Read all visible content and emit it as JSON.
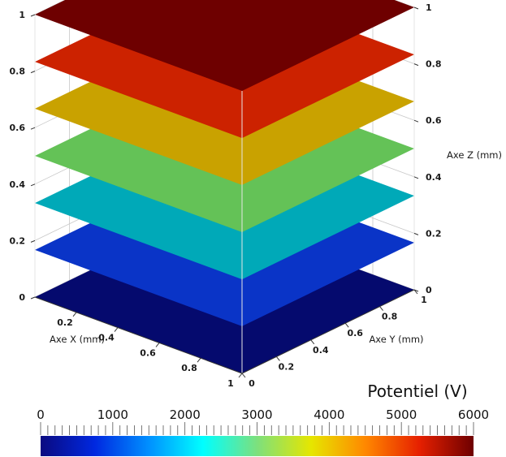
{
  "chart_data": {
    "type": "3d-isosurfaces",
    "axes": {
      "x": {
        "label": "Axe X (mm)",
        "range": [
          0,
          1
        ],
        "ticks": [
          "0",
          "0.2",
          "0.4",
          "0.6",
          "0.8",
          "1"
        ]
      },
      "y": {
        "label": "Axe Y (mm)",
        "range": [
          0,
          1
        ],
        "ticks": [
          "0",
          "0.2",
          "0.4",
          "0.6",
          "0.8",
          "1"
        ]
      },
      "z": {
        "label": "Axe Z (mm)",
        "range": [
          0,
          1
        ],
        "ticks": [
          "0",
          "0.2",
          "0.4",
          "0.6",
          "0.8",
          "1"
        ]
      }
    },
    "layers": [
      {
        "z": 0.0,
        "potential": 0,
        "color": "#050a6e"
      },
      {
        "z": 0.167,
        "potential": 1000,
        "color": "#0a34c7"
      },
      {
        "z": 0.333,
        "potential": 2000,
        "color": "#00a9b8"
      },
      {
        "z": 0.5,
        "potential": 3000,
        "color": "#64c257"
      },
      {
        "z": 0.667,
        "potential": 4000,
        "color": "#c9a200"
      },
      {
        "z": 0.833,
        "potential": 5000,
        "color": "#cc2200"
      },
      {
        "z": 1.0,
        "potential": 6000,
        "color": "#6e0000"
      }
    ],
    "colorbar": {
      "title": "Potentiel (V)",
      "ticks": [
        "0",
        "1000",
        "2000",
        "3000",
        "4000",
        "5000",
        "6000"
      ],
      "range": [
        0,
        6000
      ],
      "colormap": [
        "#0a0a80",
        "#0028e0",
        "#0090ff",
        "#00ffff",
        "#7de07d",
        "#e6e600",
        "#ff8800",
        "#e62000",
        "#6e0000"
      ]
    },
    "grid": true
  }
}
